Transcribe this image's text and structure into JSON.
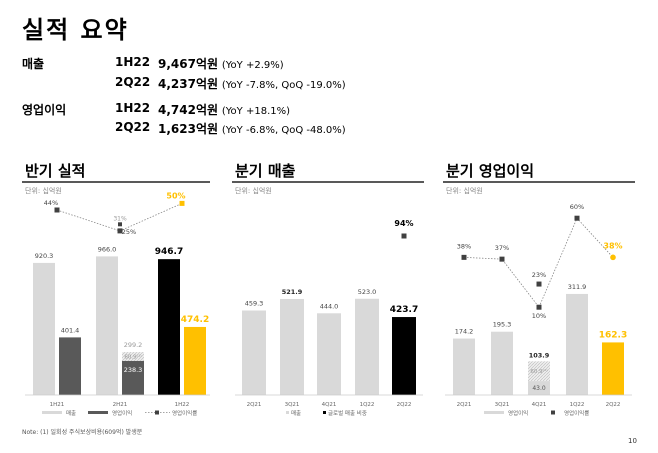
{
  "title": "실적 요약",
  "summary": [
    {
      "label": "매출",
      "period": "1H22",
      "value": "9,467억원",
      "detail": "(YoY +2.9%)"
    },
    {
      "label": "",
      "period": "2Q22",
      "value": "4,237억원",
      "detail": "(YoY -7.8%, QoQ -19.0%)"
    },
    {
      "label": "영업이익",
      "period": "1H22",
      "value": "4,742억원",
      "detail": "(YoY +18.1%)"
    },
    {
      "label": "",
      "period": "2Q22",
      "value": "1,623억원",
      "detail": "(YoY -6.8%, QoQ -48.0%)"
    }
  ],
  "colors": {
    "light": "#d9d9d9",
    "dark": "#595959",
    "black": "#000000",
    "accent": "#ffc000"
  },
  "note": "Note: (1) 일회성 주식보상비용(609억) 발생분",
  "page_number": "10",
  "chart_data": [
    {
      "type": "bar",
      "title": "반기 실적",
      "unit": "단위: 십억원",
      "categories": [
        "1H21",
        "2H21",
        "1H22"
      ],
      "series": [
        {
          "name": "매출",
          "values": [
            920.3,
            966.0,
            946.7
          ]
        },
        {
          "name": "영업이익",
          "values": [
            401.4,
            238.3,
            474.2
          ]
        },
        {
          "name": "영업이익률",
          "type": "line",
          "values": [
            44,
            25,
            50
          ],
          "labels": [
            "44%",
            "25%",
            "50%"
          ]
        }
      ],
      "one_off": {
        "category": "2H21",
        "value": 60.9,
        "label": "60.9⁽¹⁾",
        "adjusted_total": 299.2,
        "adjusted_margin": 31,
        "adjusted_margin_label": "31%"
      }
    },
    {
      "type": "bar",
      "title": "분기 매출",
      "unit": "단위: 십억원",
      "categories": [
        "2Q21",
        "3Q21",
        "4Q21",
        "1Q22",
        "2Q22"
      ],
      "series": [
        {
          "name": "매출",
          "values": [
            459.3,
            521.9,
            444.0,
            523.0,
            423.7
          ]
        },
        {
          "name": "글로벌 매출 비중",
          "type": "marker",
          "values": [
            null,
            null,
            null,
            null,
            94
          ],
          "labels": [
            "",
            "",
            "",
            "",
            "94%"
          ]
        }
      ]
    },
    {
      "type": "bar",
      "title": "분기 영업이익",
      "unit": "단위: 십억원",
      "categories": [
        "2Q21",
        "3Q21",
        "4Q21",
        "1Q22",
        "2Q22"
      ],
      "series": [
        {
          "name": "영업이익",
          "values": [
            174.2,
            195.3,
            43.0,
            311.9,
            162.3
          ]
        },
        {
          "name": "영업이익률",
          "type": "line",
          "values": [
            38,
            37,
            10,
            60,
            38
          ],
          "labels": [
            "38%",
            "37%",
            "10%",
            "60%",
            "38%"
          ]
        }
      ],
      "one_off": {
        "category": "4Q21",
        "value": 60.9,
        "label": "60.9⁽¹⁾",
        "adjusted_total": 103.9,
        "adjusted_margin": 23,
        "adjusted_margin_label": "23%"
      }
    }
  ]
}
